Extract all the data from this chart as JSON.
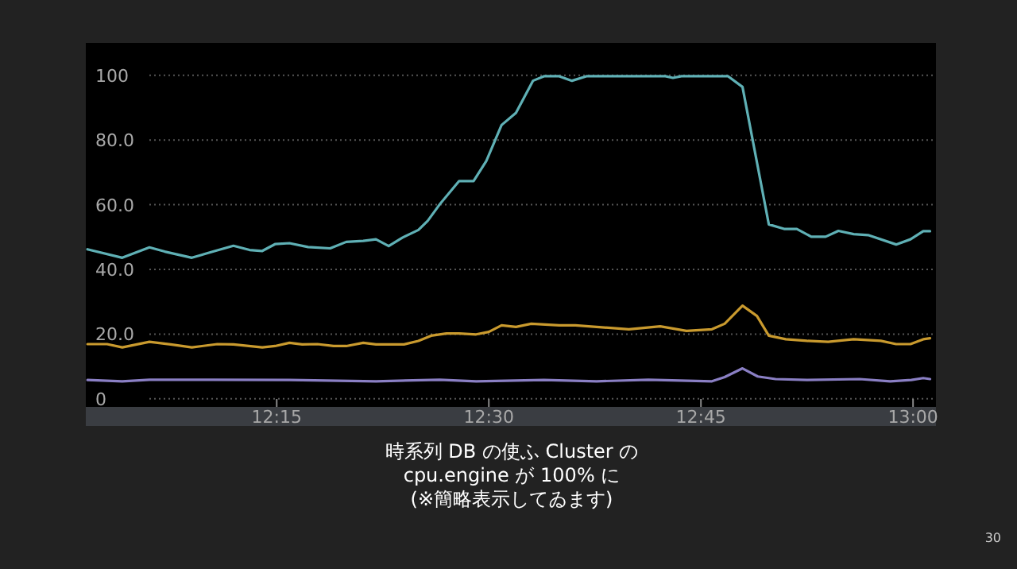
{
  "chart_data": {
    "type": "line",
    "xlim": [
      12.025,
      13.027
    ],
    "ylim": [
      -2.5,
      110
    ],
    "xticks": [
      {
        "value": 12.25,
        "label": "12:15"
      },
      {
        "value": 12.5,
        "label": "12:30"
      },
      {
        "value": 12.75,
        "label": "12:45"
      },
      {
        "value": 13,
        "label": "13:00"
      }
    ],
    "yticks": [
      0,
      {
        "value": 20,
        "label": "20.0"
      },
      {
        "value": 40,
        "label": "40.0"
      },
      {
        "value": 60,
        "label": "60.0"
      },
      {
        "value": 80,
        "label": "80.0"
      },
      100
    ],
    "grid": "y",
    "line_style": "solid",
    "marker": "none",
    "series": [
      {
        "color": "#5fb0b5",
        "x": [
          12.027,
          12.068,
          12.1,
          12.118,
          12.15,
          12.175,
          12.199,
          12.218,
          12.233,
          12.248,
          12.265,
          12.287,
          12.313,
          12.332,
          12.352,
          12.367,
          12.382,
          12.398,
          12.417,
          12.428,
          12.443,
          12.465,
          12.482,
          12.497,
          12.515,
          12.532,
          12.552,
          12.565,
          12.583,
          12.598,
          12.615,
          12.708,
          12.717,
          12.727,
          12.782,
          12.799,
          12.83,
          12.848,
          12.863,
          12.88,
          12.897,
          12.912,
          12.93,
          12.947,
          12.98,
          12.997,
          13.012,
          13.02
        ],
        "values": [
          46.2,
          43.6,
          46.8,
          45.5,
          43.6,
          45.5,
          47.3,
          46,
          45.7,
          47.8,
          48.1,
          46.9,
          46.5,
          48.5,
          48.8,
          49.3,
          47.2,
          49.8,
          52.2,
          55,
          60.4,
          67.3,
          67.3,
          73.5,
          84.6,
          88.4,
          98.3,
          99.7,
          99.7,
          98.3,
          99.7,
          99.7,
          99.2,
          99.7,
          99.7,
          96.4,
          53.9,
          52.5,
          52.5,
          50.1,
          50.1,
          51.9,
          50.9,
          50.6,
          47.7,
          49.3,
          51.8,
          51.8
        ]
      },
      {
        "color": "#c99a2e",
        "x": [
          12.027,
          12.05,
          12.068,
          12.1,
          12.125,
          12.15,
          12.18,
          12.199,
          12.233,
          12.248,
          12.265,
          12.28,
          12.298,
          12.317,
          12.332,
          12.352,
          12.367,
          12.4,
          12.417,
          12.432,
          12.45,
          12.465,
          12.485,
          12.5,
          12.515,
          12.532,
          12.55,
          12.583,
          12.602,
          12.665,
          12.702,
          12.733,
          12.763,
          12.778,
          12.799,
          12.816,
          12.83,
          12.85,
          12.875,
          12.9,
          12.93,
          12.962,
          12.98,
          12.997,
          13.012,
          13.02
        ],
        "values": [
          16.9,
          16.9,
          15.9,
          17.6,
          16.8,
          15.9,
          16.9,
          16.8,
          15.9,
          16.3,
          17.3,
          16.8,
          16.9,
          16.3,
          16.3,
          17.3,
          16.8,
          16.8,
          17.9,
          19.5,
          20.2,
          20.2,
          19.9,
          20.7,
          22.7,
          22.2,
          23.2,
          22.7,
          22.7,
          21.5,
          22.4,
          21,
          21.5,
          23.2,
          28.8,
          25.6,
          19.5,
          18.4,
          17.9,
          17.6,
          18.4,
          17.9,
          16.9,
          16.9,
          18.4,
          18.7
        ]
      },
      {
        "color": "#8a7fc4",
        "x": [
          12.027,
          12.068,
          12.1,
          12.175,
          12.265,
          12.367,
          12.442,
          12.485,
          12.565,
          12.627,
          12.688,
          12.763,
          12.778,
          12.799,
          12.817,
          12.838,
          12.875,
          12.937,
          12.973,
          12.998,
          13.012,
          13.02
        ],
        "values": [
          5.8,
          5.4,
          5.9,
          5.9,
          5.8,
          5.4,
          5.9,
          5.4,
          5.8,
          5.4,
          5.9,
          5.4,
          6.7,
          9.4,
          6.9,
          6.1,
          5.8,
          6.1,
          5.4,
          5.8,
          6.4,
          6.1
        ]
      }
    ],
    "annotations": [
      "時系列 DB の使ふ Cluster の",
      "cpu.engine が 100% に",
      "(※簡略表示してゐます)",
      "30"
    ]
  }
}
